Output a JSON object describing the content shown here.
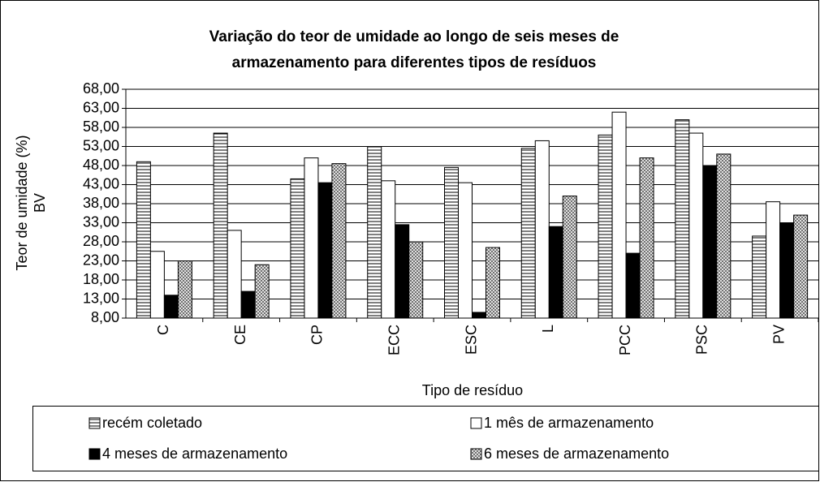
{
  "chart_data": {
    "type": "bar",
    "title": [
      "Variação do teor de umidade ao longo de seis meses de",
      "armazenamento para diferentes tipos de resíduos"
    ],
    "ylabel": [
      "Teor de umidade (%)",
      "BV"
    ],
    "xlabel": "Tipo de resíduo",
    "categories": [
      "C",
      "CE",
      "CP",
      "ECC",
      "ESC",
      "L",
      "PCC",
      "PSC",
      "PV"
    ],
    "series": [
      {
        "name": "recém coletado",
        "color": "#ffffff",
        "pattern": "hstripes",
        "values": [
          49,
          56.5,
          44.5,
          53,
          47.5,
          52.5,
          56,
          60,
          29.5
        ]
      },
      {
        "name": "1 mês de armazenamento",
        "color": "#ffffff",
        "pattern": "none",
        "values": [
          25.5,
          31,
          50,
          44,
          43.5,
          54.5,
          62,
          56.5,
          38.5
        ]
      },
      {
        "name": "4 meses de armazenamento",
        "color": "#000000",
        "pattern": "none",
        "values": [
          14,
          15,
          43.5,
          32.5,
          9.5,
          32,
          25,
          48,
          33
        ]
      },
      {
        "name": "6 meses de armazenamento",
        "color": "#ffffff",
        "pattern": "crosshatch",
        "values": [
          23,
          22,
          48.5,
          28,
          26.5,
          40,
          50,
          51,
          35
        ]
      }
    ],
    "ylim": [
      8,
      68
    ],
    "yticks": [
      {
        "value": 8,
        "label": "8,00"
      },
      {
        "value": 13,
        "label": "13,00"
      },
      {
        "value": 18,
        "label": "18,00"
      },
      {
        "value": 23,
        "label": "23,00"
      },
      {
        "value": 28,
        "label": "28,00"
      },
      {
        "value": 33,
        "label": "33,00"
      },
      {
        "value": 38,
        "label": "38,00"
      },
      {
        "value": 43,
        "label": "43,00"
      },
      {
        "value": 48,
        "label": "48,00"
      },
      {
        "value": 53,
        "label": "53,00"
      },
      {
        "value": 58,
        "label": "58,00"
      },
      {
        "value": 63,
        "label": "63,00"
      },
      {
        "value": 68,
        "label": "68,00"
      }
    ],
    "grid": true,
    "legend": "bottom"
  }
}
